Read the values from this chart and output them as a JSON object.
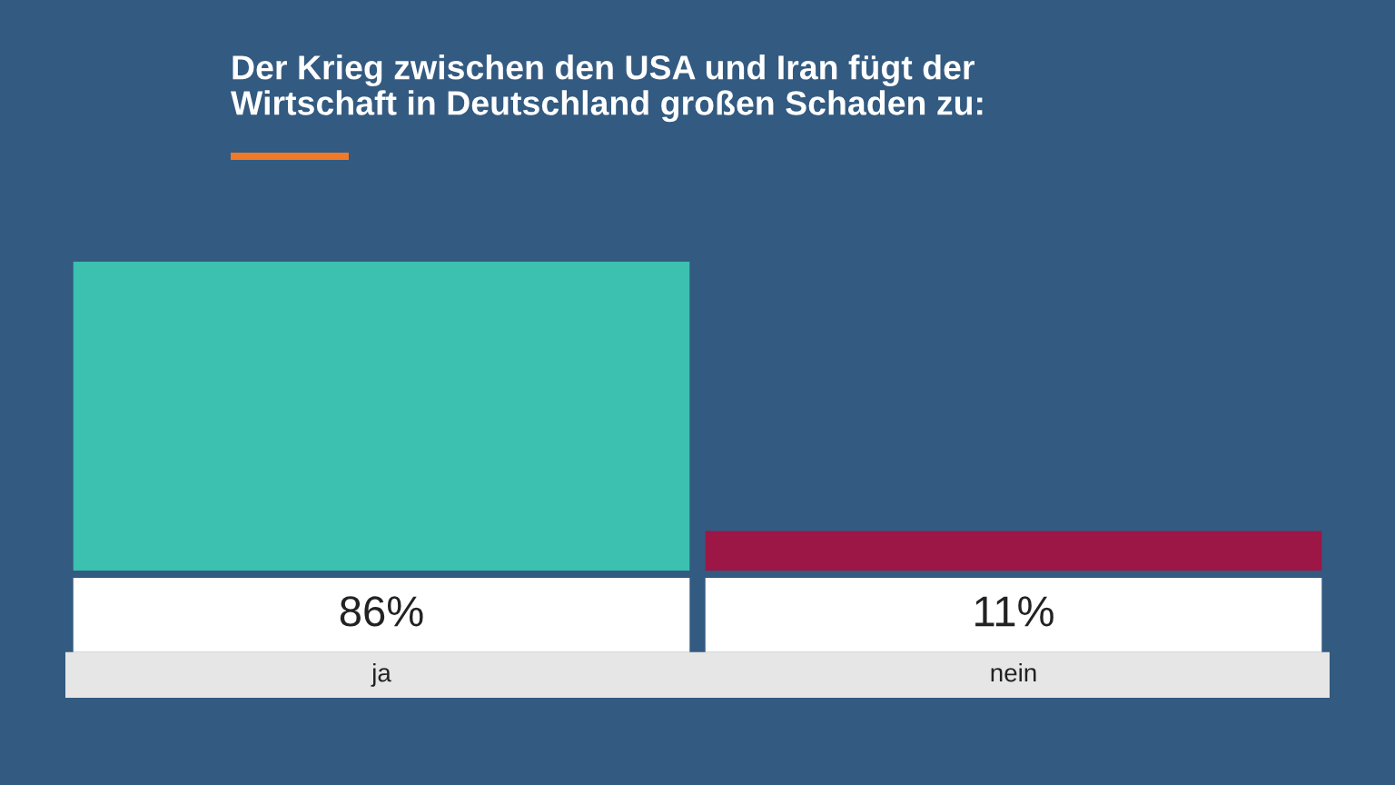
{
  "chart_data": {
    "type": "bar",
    "title": "Der Krieg zwischen den USA und Iran fügt der\nWirtschaft in Deutschland großen Schaden zu:",
    "categories": [
      "ja",
      "nein"
    ],
    "values": [
      86,
      11
    ],
    "value_labels": [
      "86%",
      "11%"
    ],
    "colors": [
      "#3cc0b0",
      "#9c1646"
    ],
    "ylim": [
      0,
      86
    ],
    "tick_labels": false
  }
}
